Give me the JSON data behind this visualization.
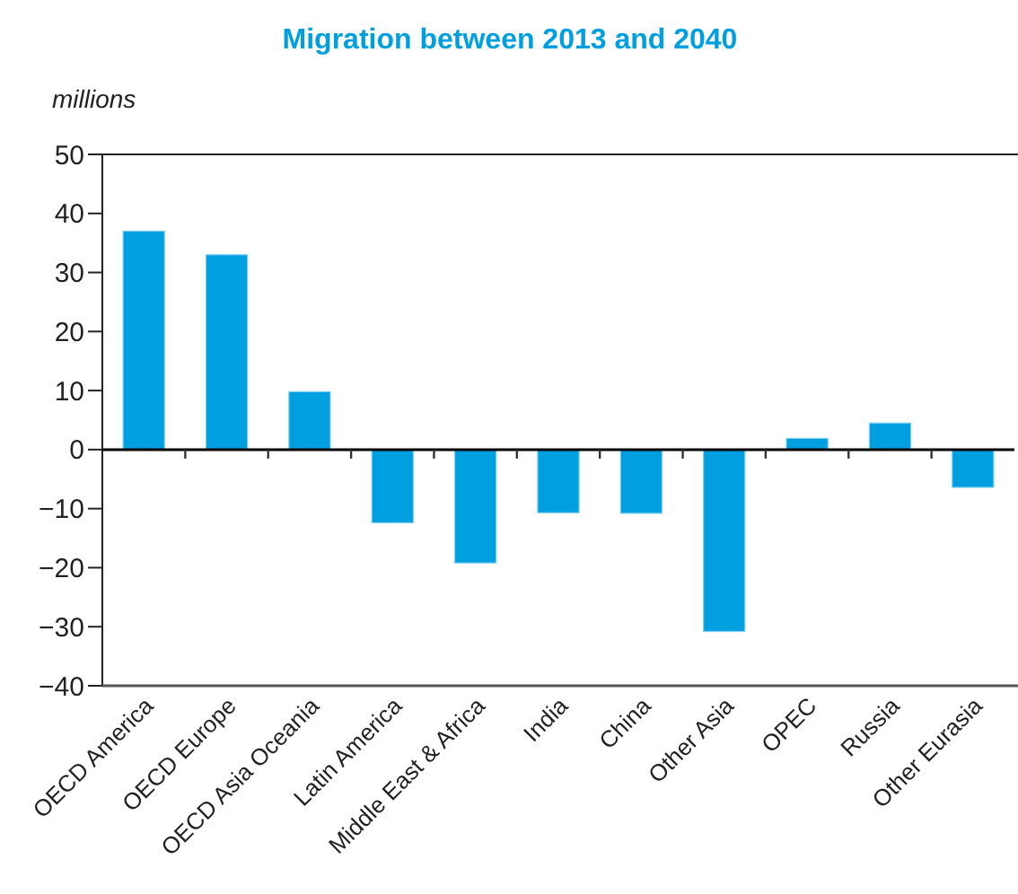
{
  "chart_data": {
    "type": "bar",
    "title": "Migration between 2013 and 2040",
    "ylabel": "millions",
    "categories": [
      "OECD America",
      "OECD Europe",
      "OECD Asia Oceania",
      "Latin America",
      "Middle East & Africa",
      "India",
      "China",
      "Other Asia",
      "OPEC",
      "Russia",
      "Other Eurasia"
    ],
    "values": [
      37,
      33,
      9.8,
      -12.4,
      -19.2,
      -10.7,
      -10.8,
      -30.8,
      1.9,
      4.5,
      -6.4
    ],
    "color": "#009fe0",
    "ylim": [
      -40,
      50
    ],
    "yticks": [
      {
        "value": -40,
        "label": "−40"
      },
      {
        "value": -30,
        "label": "−30"
      },
      {
        "value": -20,
        "label": "−20"
      },
      {
        "value": -10,
        "label": "−10"
      },
      0,
      10,
      20,
      30,
      40,
      50
    ]
  }
}
